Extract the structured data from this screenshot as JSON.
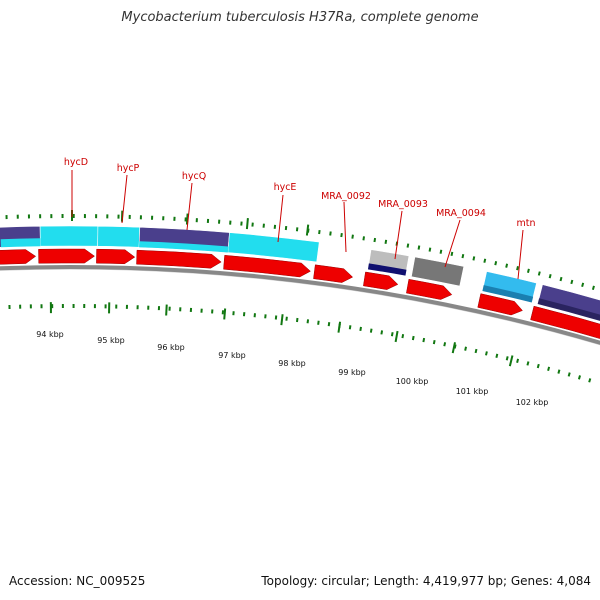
{
  "title": "Mycobacterium tuberculosis H37Ra, complete genome",
  "footer": {
    "accession": "Accession: NC_009525",
    "stats": "Topology: circular; Length: 4,419,977 bp; Genes: 4,084"
  },
  "colors": {
    "cds": "#ee0000",
    "cyan_feature": "#22ddee",
    "navy_feature": "#4a3f8c",
    "dark_navy": "#101070",
    "gray_feature": "#777777",
    "light_blue": "#33bbee",
    "label": "#cc0000",
    "tick": "#117711",
    "backbone": "#888888"
  },
  "gene_labels": [
    "hycD",
    "hycP",
    "hycQ",
    "hycE",
    "MRA_0092",
    "MRA_0093",
    "MRA_0094",
    "mtn"
  ],
  "scale_labels": [
    "94 kbp",
    "95 kbp",
    "96 kbp",
    "97 kbp",
    "98 kbp",
    "99 kbp",
    "100 kbp",
    "101 kbp",
    "102 kbp"
  ]
}
